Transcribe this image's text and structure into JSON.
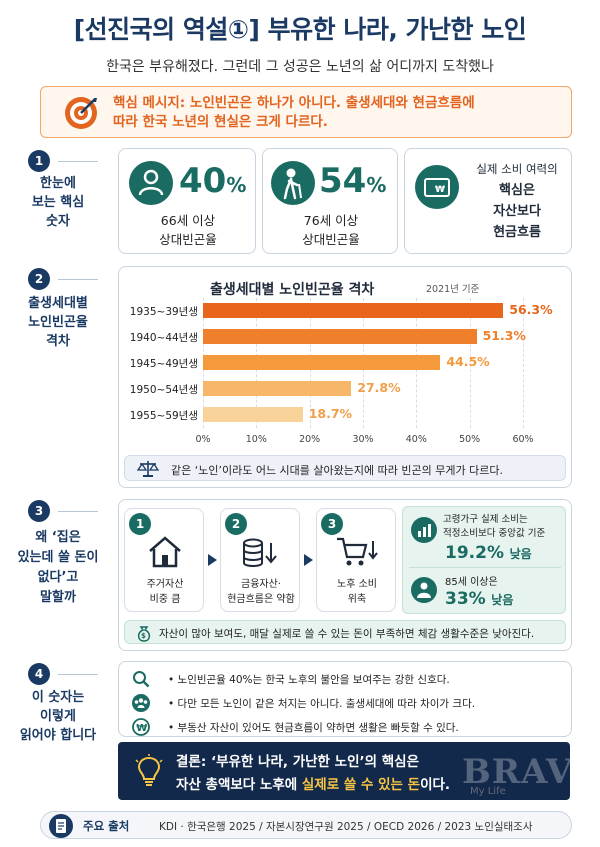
{
  "header": {
    "title": "[선진국의 역설①] 부유한 나라, 가난한 노인",
    "subtitle": "한국은 부유해졌다. 그런데 그 성공은 노년의 삶 어디까지 도착했나"
  },
  "key_message": {
    "line1": "핵심 메시지: 노인빈곤은 하나가 아니다. 출생세대와 현금흐름에",
    "line2": "따라 한국 노년의 현실은 크게 다르다."
  },
  "section1": {
    "num": "1",
    "label_lines": [
      "한눈에",
      "보는 핵심",
      "숫자"
    ],
    "stats": [
      {
        "value": "40",
        "unit": "%",
        "cap1": "66세 이상",
        "cap2": "상대빈곤율"
      },
      {
        "value": "54",
        "unit": "%",
        "cap1": "76세 이상",
        "cap2": "상대빈곤율"
      }
    ],
    "third": [
      "실제 소비 여력의",
      "핵심은",
      "자산보다",
      "현금흐름"
    ]
  },
  "section2": {
    "num": "2",
    "label_lines": [
      "출생세대별",
      "노인빈곤율",
      "격차"
    ]
  },
  "chart_data": {
    "type": "bar",
    "orientation": "horizontal",
    "title": "출생세대별 노인빈곤율 격차",
    "note": "2021년 기준",
    "categories": [
      "1935~39년생",
      "1940~44년생",
      "1945~49년생",
      "1950~54년생",
      "1955~59년생"
    ],
    "values": [
      56.3,
      51.3,
      44.5,
      27.8,
      18.7
    ],
    "value_labels": [
      "56.3%",
      "51.3%",
      "44.5%",
      "27.8%",
      "18.7%"
    ],
    "colors": [
      "#e8661c",
      "#ef7f2a",
      "#f59a3c",
      "#f7b769",
      "#f9d29a"
    ],
    "xlim": [
      0,
      60
    ],
    "xticks": [
      "0%",
      "10%",
      "20%",
      "30%",
      "40%",
      "50%",
      "60%"
    ],
    "grid": true
  },
  "section2_note": "같은 ‘노인’이라도 어느 시대를 살아왔는지에 따라 빈곤의 무게가 다르다.",
  "section3": {
    "num": "3",
    "label_lines": [
      "왜 ‘집은",
      "있는데 쓸 돈이",
      "없다’고",
      "말할까"
    ],
    "steps": [
      {
        "num": "1",
        "cap1": "주거자산",
        "cap2": "비중 큼"
      },
      {
        "num": "2",
        "cap1": "금융자산·",
        "cap2": "현금흐름은 약함"
      },
      {
        "num": "3",
        "cap1": "노후 소비",
        "cap2": "위축"
      }
    ],
    "stat_a": {
      "line1": "고령가구 실제 소비는",
      "line2": "적정소비보다 중앙값 기준",
      "value": "19.2%",
      "suffix": "낮음"
    },
    "stat_b": {
      "line1": "85세 이상은",
      "value": "33%",
      "suffix": "낮음"
    },
    "note": "자산이 많아 보여도, 매달 실제로 쓸 수 있는 돈이 부족하면 체감 생활수준은 낮아진다."
  },
  "section4": {
    "num": "4",
    "label_lines": [
      "이 숫자는",
      "이렇게",
      "읽어야 합니다"
    ],
    "bullets": [
      "• 노인빈곤율 40%는 한국 노후의 불안을 보여주는 강한 신호다.",
      "• 다만 모든 노인이 같은 처지는 아니다. 출생세대에 따라 차이가 크다.",
      "• 부동산 자산이 있어도 현금흐름이 약하면 생활은 빠듯할 수 있다."
    ]
  },
  "conclusion": {
    "line1": "결론: ‘부유한 나라, 가난한 노인’의 핵심은",
    "line2_a": "자산 총액보다 노후에 ",
    "line2_hl": "실제로 쓸 수 있는 돈",
    "line2_b": "이다."
  },
  "source": {
    "label": "주요 출처",
    "text": "KDI · 한국은행 2025 / 자본시장연구원 2025 / OECD 2026 / 2023 노인실태조사"
  },
  "watermark": {
    "logo": "BRAVO",
    "sub": "My Life"
  }
}
